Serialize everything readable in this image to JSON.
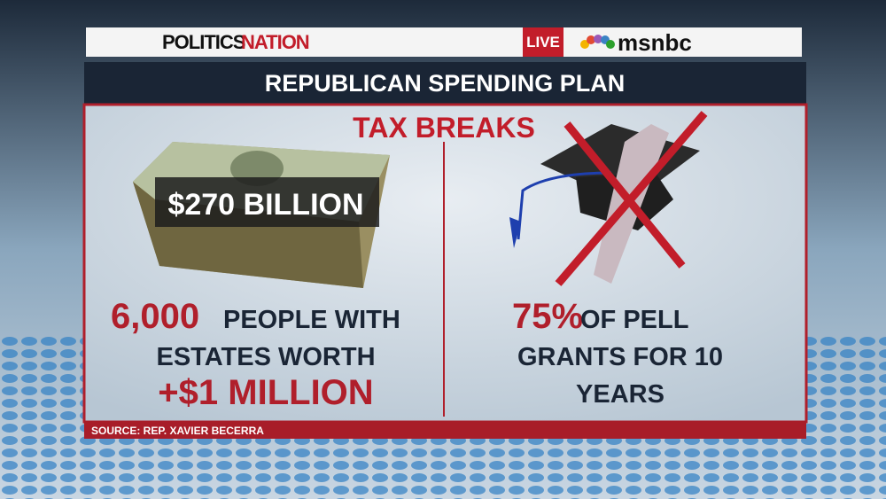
{
  "header": {
    "show_part1": "POLITICS",
    "show_part2": "NATION",
    "live": "LIVE",
    "network": "msnbc"
  },
  "title": "REPUBLICAN SPENDING PLAN",
  "subtitle": "TAX BREAKS",
  "left": {
    "money_label": "$270 BILLION",
    "highlight": "6,000",
    "line1": "PEOPLE WITH",
    "line2": "ESTATES WORTH",
    "amount": "+$1 MILLION"
  },
  "right": {
    "highlight": "75%",
    "line1": "OF PELL",
    "line2": "GRANTS FOR 10",
    "line3": "YEARS"
  },
  "source": "SOURCE: REP. XAVIER BECERRA"
}
